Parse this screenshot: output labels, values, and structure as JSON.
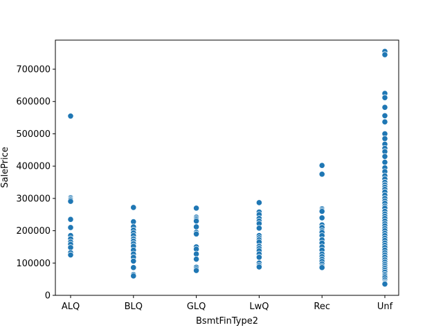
{
  "chart_data": {
    "type": "scatter",
    "xlabel": "BsmtFinType2",
    "ylabel": "SalePrice",
    "categories": [
      "ALQ",
      "BLQ",
      "GLQ",
      "LwQ",
      "Rec",
      "Unf"
    ],
    "ylim": [
      0,
      790000
    ],
    "y_ticks": [
      0,
      100000,
      200000,
      300000,
      400000,
      500000,
      600000,
      700000
    ],
    "y_tick_labels": [
      "0",
      "100000",
      "200000",
      "300000",
      "400000",
      "500000",
      "600000",
      "700000"
    ],
    "grid": false,
    "legend": "none",
    "point_color": "#1f77b4",
    "points": {
      "ALQ": [
        555000,
        302000,
        298000,
        295000,
        291000,
        235000,
        210000,
        185000,
        175000,
        165000,
        158000,
        148000,
        132000,
        125000
      ],
      "BLQ": [
        272000,
        228000,
        212000,
        202000,
        193000,
        185000,
        175000,
        168000,
        160000,
        152000,
        140000,
        128000,
        118000,
        106000,
        86000,
        64000,
        60000
      ],
      "GLQ": [
        270000,
        242000,
        238000,
        234000,
        230000,
        212000,
        195000,
        190000,
        150000,
        143000,
        128000,
        112000,
        87000,
        82000,
        77000
      ],
      "LwQ": [
        287000,
        258000,
        250000,
        238000,
        230000,
        222000,
        208000,
        185000,
        178000,
        172000,
        165000,
        152000,
        145000,
        138000,
        128000,
        118000,
        100000,
        93000,
        88000
      ],
      "Rec": [
        402000,
        375000,
        268000,
        264000,
        260000,
        240000,
        218000,
        210000,
        200000,
        195000,
        185000,
        172000,
        162000,
        150000,
        140000,
        128000,
        120000,
        112000,
        105000,
        97000,
        90000,
        86000
      ],
      "Unf": [
        755000,
        745000,
        625000,
        612000,
        582000,
        556000,
        537000,
        500000,
        485000,
        468000,
        455000,
        445000,
        430000,
        412000,
        395000,
        383000,
        370000,
        360000,
        350000,
        342000,
        335000,
        328000,
        320000,
        310000,
        300000,
        292000,
        285000,
        276000,
        270000,
        260000,
        252000,
        245000,
        238000,
        230000,
        222000,
        215000,
        207000,
        200000,
        192000,
        185000,
        177000,
        170000,
        162000,
        155000,
        148000,
        140000,
        132000,
        125000,
        118000,
        110000,
        103000,
        96000,
        90000,
        84000,
        78000,
        72000,
        65000,
        60000,
        55000,
        48000,
        42000,
        38000,
        35000
      ]
    }
  }
}
